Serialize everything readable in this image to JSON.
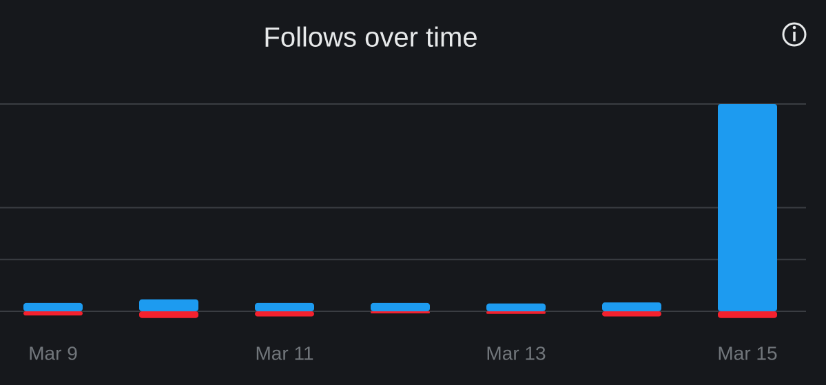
{
  "chart_data": {
    "type": "bar",
    "title": "Follows over time",
    "categories": [
      "Mar 9",
      null,
      "Mar 11",
      null,
      "Mar 13",
      null,
      "Mar 15"
    ],
    "series": [
      {
        "color": "#1d9bf0",
        "values": [
          0.16,
          0.23,
          0.16,
          0.16,
          0.15,
          0.17,
          4.0
        ]
      },
      {
        "color": "#f4212e",
        "values": [
          -0.08,
          -0.13,
          -0.1,
          -0.04,
          -0.05,
          -0.1,
          -0.13
        ]
      }
    ],
    "ylim": [
      -0.2,
      4.0
    ],
    "yticks": [
      0,
      1,
      2,
      4
    ],
    "grid": true
  }
}
